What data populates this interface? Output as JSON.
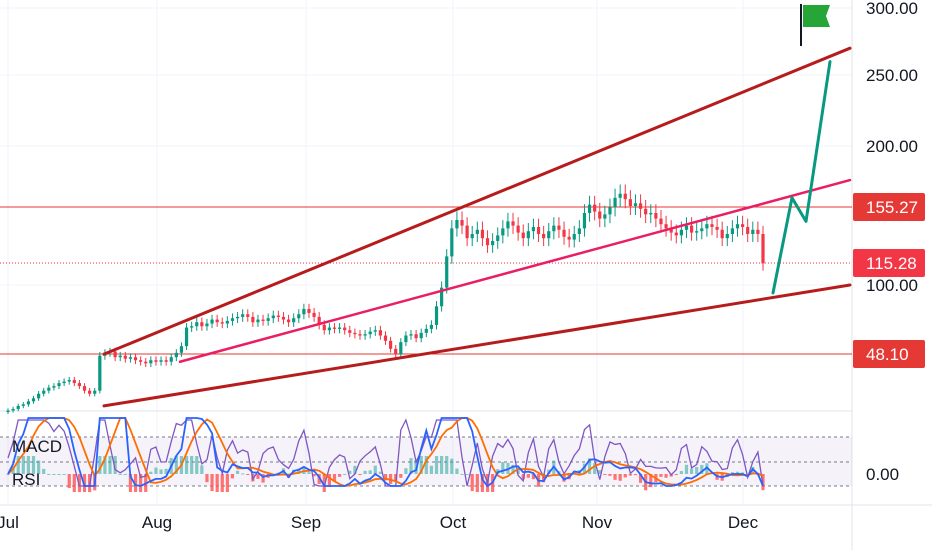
{
  "chart_data": {
    "type": "candlestick",
    "price_axis": {
      "labels": [
        "300.00",
        "250.00",
        "200.00",
        "100.00"
      ],
      "values": [
        300,
        250,
        200,
        100
      ],
      "ylim": [
        10,
        310
      ]
    },
    "time_axis": {
      "labels": [
        "Jul",
        "Aug",
        "Sep",
        "Oct",
        "Nov",
        "Dec"
      ]
    },
    "price_tags": [
      {
        "label": "155.27",
        "value": 155.27,
        "color": "#e53935"
      },
      {
        "label": "115.28",
        "value": 115.28,
        "color": "#f23645"
      },
      {
        "label": "48.10",
        "value": 48.1,
        "color": "#e53935"
      }
    ],
    "closes": [
      11,
      12,
      14,
      15,
      17,
      19,
      22,
      24,
      26,
      27,
      29,
      30,
      31,
      29,
      27,
      24,
      22,
      24,
      47,
      49,
      50,
      46,
      47,
      45,
      46,
      44,
      43,
      42,
      44,
      43,
      44,
      43,
      46,
      49,
      54,
      68,
      69,
      72,
      69,
      71,
      74,
      72,
      71,
      73,
      75,
      76,
      78,
      76,
      72,
      74,
      73,
      75,
      77,
      76,
      74,
      72,
      75,
      78,
      82,
      79,
      76,
      70,
      66,
      68,
      67,
      68,
      66,
      64,
      63,
      62,
      63,
      65,
      66,
      62,
      58,
      52,
      48,
      57,
      62,
      63,
      60,
      64,
      67,
      70,
      84,
      98,
      120,
      140,
      146,
      142,
      133,
      136,
      139,
      133,
      128,
      131,
      135,
      140,
      145,
      142,
      137,
      133,
      138,
      141,
      136,
      133,
      138,
      142,
      139,
      134,
      132,
      136,
      140,
      151,
      157,
      152,
      147,
      150,
      155,
      162,
      165,
      161,
      156,
      158,
      154,
      150,
      151,
      147,
      143,
      140,
      137,
      135,
      139,
      142,
      137,
      138,
      140,
      143,
      141,
      139,
      133,
      136,
      140,
      143,
      141,
      136,
      139,
      136,
      115
    ],
    "annotations": {
      "channel_upper": [
        [
          104,
          48
        ],
        [
          850,
          270
        ]
      ],
      "channel_lower": [
        [
          104,
          14
        ],
        [
          850,
          100
        ]
      ],
      "inner_line": [
        [
          180,
          43
        ],
        [
          850,
          175
        ]
      ],
      "horizontal_lines": [
        155.27,
        48.1
      ],
      "projection": [
        [
          773,
          94
        ],
        [
          792,
          162
        ],
        [
          806,
          145
        ],
        [
          830,
          260
        ]
      ]
    },
    "indicators": {
      "labels": [
        "MACD",
        "RSI"
      ],
      "zero_label": "0.00"
    }
  }
}
